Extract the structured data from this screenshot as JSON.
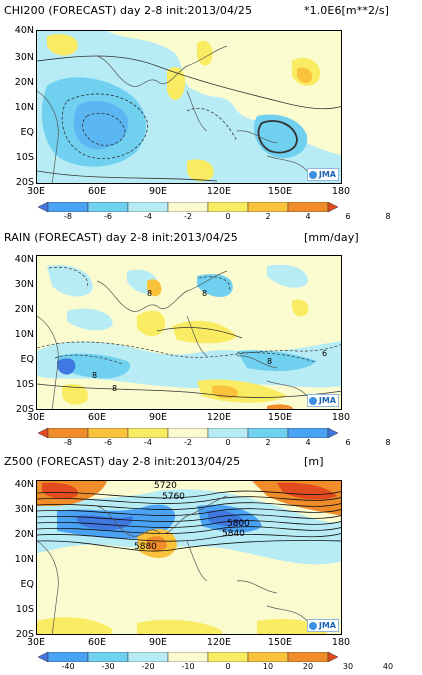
{
  "panels": [
    {
      "id": "chi200",
      "title": "CHI200 (FORECAST) day 2-8 init:2013/04/25",
      "unit": "*1.0E6[m**2/s]",
      "colorbar_labels": [
        "-8",
        "-6",
        "-4",
        "-2",
        "0",
        "2",
        "4",
        "6",
        "8"
      ],
      "colors": [
        "#3f78e0",
        "#4aa2f5",
        "#6fd0f0",
        "#b8ecf5",
        "#fbfbd0",
        "#f9ec62",
        "#f9c23a",
        "#f08c2a",
        "#e14b1e"
      ]
    },
    {
      "id": "rain",
      "title": "RAIN (FORECAST) day 2-8 init:2013/04/25",
      "unit": "[mm/day]",
      "colorbar_labels": [
        "-8",
        "-6",
        "-4",
        "-2",
        "0",
        "2",
        "4",
        "6",
        "8"
      ],
      "colors": [
        "#e14b1e",
        "#f08c2a",
        "#f9c23a",
        "#f9ec62",
        "#fbfbd0",
        "#b8ecf5",
        "#6fd0f0",
        "#4aa2f5",
        "#3f78e0"
      ]
    },
    {
      "id": "z500",
      "title": "Z500 (FORECAST) day 2-8 init:2013/04/25",
      "unit": "[m]",
      "colorbar_labels": [
        "-40",
        "-30",
        "-20",
        "-10",
        "0",
        "10",
        "20",
        "30",
        "40"
      ],
      "colors": [
        "#3f78e0",
        "#4aa2f5",
        "#6fd0f0",
        "#b8ecf5",
        "#fbfbd0",
        "#f9ec62",
        "#f9c23a",
        "#f08c2a",
        "#e14b1e"
      ],
      "contour_labels": [
        "5720",
        "5760",
        "5800",
        "5840",
        "5880"
      ]
    }
  ],
  "axes": {
    "lat_labels": [
      "40N",
      "30N",
      "20N",
      "10N",
      "EQ",
      "10S",
      "20S"
    ],
    "lon_labels": [
      "30E",
      "60E",
      "90E",
      "120E",
      "150E",
      "180"
    ]
  },
  "rain_contour_labels": [
    "8",
    "8",
    "6",
    "8",
    "8",
    "8"
  ],
  "logo_text": "JMA"
}
